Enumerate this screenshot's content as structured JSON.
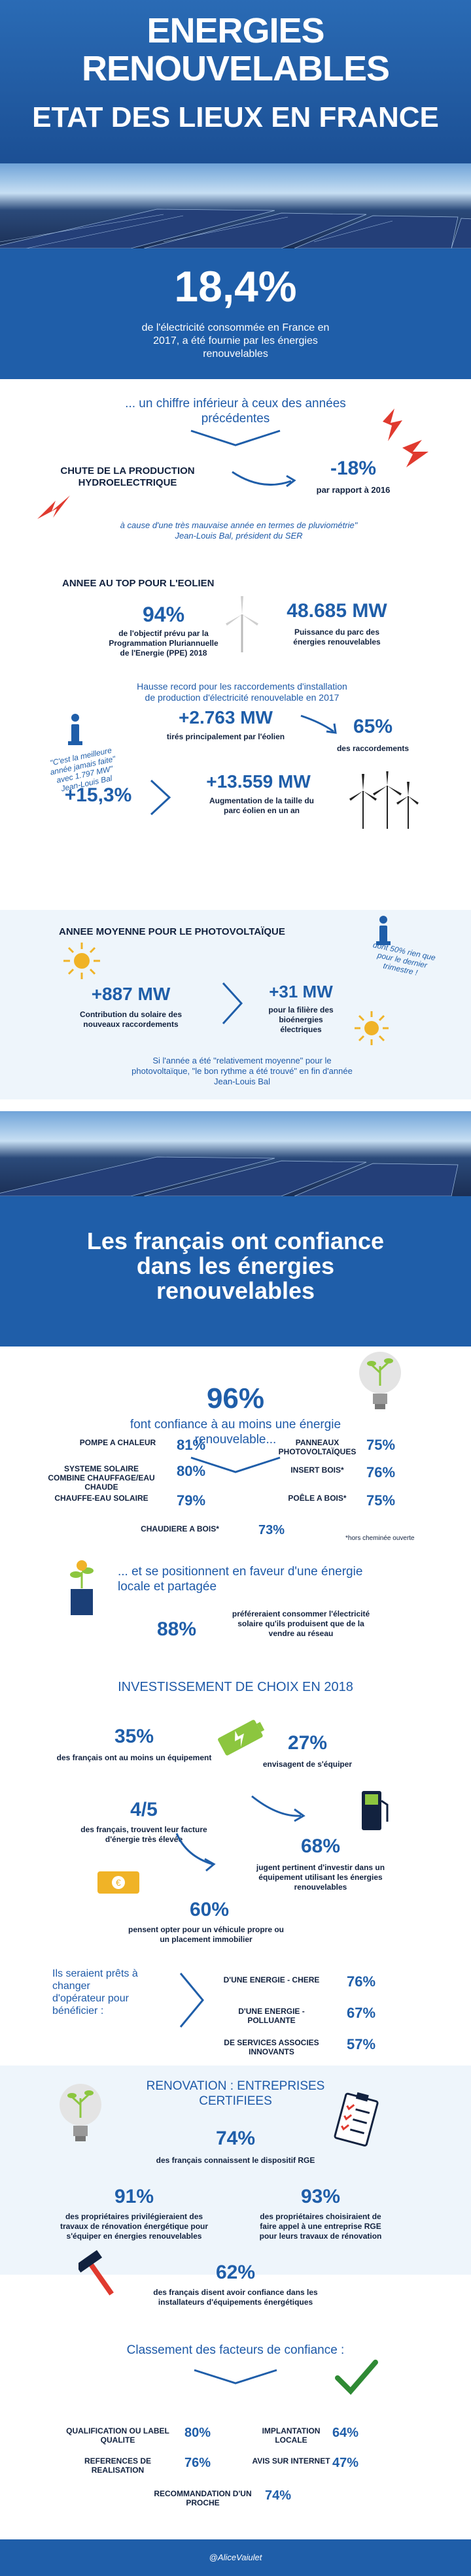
{
  "header": {
    "line1": "ENERGIES",
    "line2": "RENOUVELABLES",
    "line3": "ETAT DES LIEUX EN FRANCE"
  },
  "intro": {
    "percent": "18,4%",
    "text": "de l'électricité  consommée en France en 2017, a été fournie par les énergies renouvelables"
  },
  "section1": {
    "lead": "... un chiffre inférieur à ceux des années précédentes",
    "hydro_title": "CHUTE DE LA PRODUCTION HYDROELECTRIQUE",
    "hydro_value": "-18%",
    "hydro_sub": "par rapport à 2016",
    "hydro_quote": "à cause d'une très mauvaise année en termes de pluviométrie\" Jean-Louis Bal,  président du SER"
  },
  "eolien": {
    "title": "ANNEE AU TOP POUR L'EOLIEN",
    "v1": "94%",
    "v1_sub": "de l'objectif prévu par la Programmation Pluriannuelle de l'Energie (PPE) 2018",
    "v2": "48.685 MW",
    "v2_sub": "Puissance du parc des énergies renouvelables",
    "record": "Hausse record pour les raccordements d'installation de production d'électricité renouvelable en 2017",
    "quote": "\"C'est la meilleure année jamais faite\" avec 1.797 MW\" Jean-Louis Bal",
    "v3": "+2.763 MW",
    "v3_sub": "tirés principalement par l'éolien",
    "v4": "65%",
    "v4_sub": "des raccordements",
    "v5": "+15,3%",
    "v6": "+13.559 MW",
    "v6_sub": "Augmentation de la taille du  parc éolien en un an"
  },
  "photovoltaique": {
    "title": "ANNEE MOYENNE POUR LE PHOTOVOLTAÏQUE",
    "note": "dont 50% rien que pour le dernier trimestre !",
    "v1": "+887 MW",
    "v1_sub": "Contribution du solaire des nouveaux raccordements",
    "v2": "+31 MW",
    "v2_sub": "pour la filière des bioénergies électriques",
    "quote": "Si l'année a été \"relativement moyenne\" pour le photovoltaïque, \"le bon rythme a été trouvé\" en fin d'année Jean-Louis Bal"
  },
  "banner2": {
    "title": "Les français ont confiance dans les énergies renouvelables"
  },
  "confiance": {
    "pct": "96%",
    "text": "font confiance à au moins une énergie renouvelable...",
    "items": [
      {
        "label": "POMPE A CHALEUR",
        "value": "81%"
      },
      {
        "label": "PANNEAUX PHOTOVOLTAÏQUES",
        "value": "75%"
      },
      {
        "label": "SYSTEME SOLAIRE COMBINE CHAUFFAGE/EAU CHAUDE",
        "value": "80%"
      },
      {
        "label": "INSERT BOIS*",
        "value": "76%"
      },
      {
        "label": "CHAUFFE-EAU SOLAIRE",
        "value": "79%"
      },
      {
        "label": "POÊLE A BOIS*",
        "value": "75%"
      },
      {
        "label": "CHAUDIERE A BOIS*",
        "value": "73%"
      }
    ],
    "footnote": "*hors cheminée ouverte",
    "local_text": "... et se positionnent en faveur d'une énergie locale et partagée",
    "local_pct": "88%",
    "local_sub": "préféreraient consommer l'électricité solaire qu'ils produisent que de la vendre au réseau"
  },
  "investissement": {
    "title": "INVESTISSEMENT DE CHOIX EN 2018",
    "a_pct": "35%",
    "a_sub": "des français ont au moins un équipement",
    "b_pct": "27%",
    "b_sub": "envisagent de s'équiper",
    "c_pct": "4/5",
    "c_sub": "des français, trouvent leur facture d'énergie très élevée",
    "d_pct": "68%",
    "d_sub": "jugent pertinent d'investir dans un équipement utilisant les énergies renouvelables",
    "e_pct": "60%",
    "e_sub": "pensent opter pour un véhicule propre ou un placement immobilier",
    "change_text": "Ils seraient prêts à changer d'opérateur pour bénéficier :",
    "options": [
      {
        "label": "D'UNE ENERGIE - CHERE",
        "value": "76%"
      },
      {
        "label": "D'UNE ENERGIE - POLLUANTE",
        "value": "67%"
      },
      {
        "label": "DE SERVICES ASSOCIES INNOVANTS",
        "value": "57%"
      }
    ]
  },
  "renovation": {
    "title": "RENOVATION : ENTREPRISES CERTIFIEES",
    "a_pct": "74%",
    "a_sub": "des français connaissent le dispositif RGE",
    "b_pct": "91%",
    "b_sub": "des propriétaires privilégieraient des travaux de rénovation énergétique pour s'équiper en énergies renouvelables",
    "c_pct": "93%",
    "c_sub": "des propriétaires choisiraient de faire appel à une entreprise RGE pour leurs travaux de rénovation",
    "d_pct": "62%",
    "d_sub": "des français disent avoir confiance dans les installateurs d'équipements énergétiques",
    "factors_title": "Classement des facteurs de confiance :",
    "factors": [
      {
        "label": "QUALIFICATION OU LABEL QUALITE",
        "value": "80%"
      },
      {
        "label": "IMPLANTATION LOCALE",
        "value": "64%"
      },
      {
        "label": "REFERENCES DE REALISATION",
        "value": "76%"
      },
      {
        "label": "AVIS SUR INTERNET",
        "value": "47%"
      },
      {
        "label": "RECOMMANDATION D'UN PROCHE",
        "value": "74%"
      }
    ]
  },
  "footer": {
    "credit": "@AliceVaiulet"
  },
  "colors": {
    "brand_blue": "#1f5ea9",
    "navy": "#12223f",
    "light_bg": "#eef5fb",
    "accent_red": "#e03a2f",
    "accent_yellow": "#f0b327",
    "green": "#8cc63f"
  }
}
